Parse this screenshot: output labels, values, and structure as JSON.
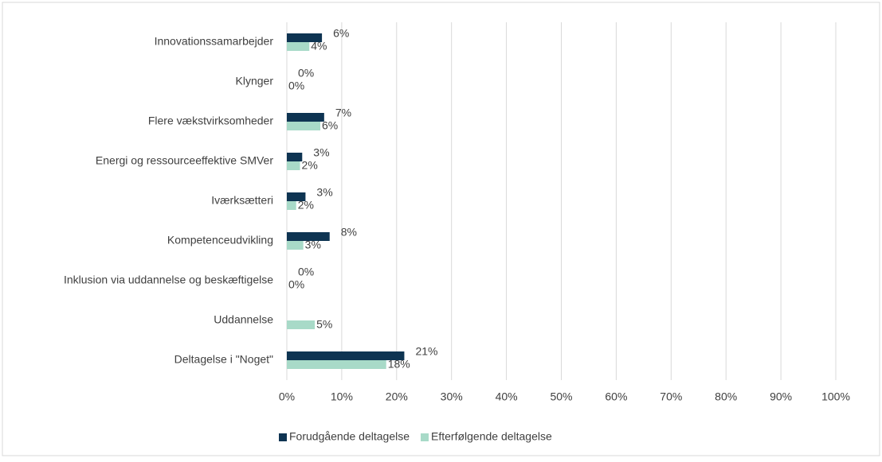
{
  "chart_data": {
    "type": "barh",
    "categories": [
      "Innovationssamarbejder",
      "Klynger",
      "Flere vækstvirksomheder",
      "Energi og ressourceeffektive SMVer",
      "Iværksætteri",
      "Kompetenceudvikling",
      "Inklusion via uddannelse og beskæftigelse",
      "Uddannelse",
      "Deltagelse i \"Noget\""
    ],
    "series": [
      {
        "name": "Forudgående deltagelse",
        "color": "#0e3452",
        "values": [
          6.4,
          0,
          6.8,
          2.8,
          3.4,
          7.8,
          0,
          null,
          21.4
        ],
        "value_labels": [
          "6%",
          "0%",
          "7%",
          "3%",
          "3%",
          "8%",
          "0%",
          null,
          "21%"
        ]
      },
      {
        "name": "Efterfølgende deltagelse",
        "color": "#a8dac8",
        "values": [
          4.1,
          0,
          6.1,
          2.4,
          1.7,
          3.0,
          0,
          5.1,
          18.1
        ],
        "value_labels": [
          "4%",
          "0%",
          "6%",
          "2%",
          "2%",
          "3%",
          "0%",
          "5%",
          "18%"
        ]
      }
    ],
    "xlim": [
      0,
      100
    ],
    "xticks": [
      {
        "value": 0,
        "label": "0%"
      },
      {
        "value": 10,
        "label": "10%"
      },
      {
        "value": 20,
        "label": "20%"
      },
      {
        "value": 30,
        "label": "30%"
      },
      {
        "value": 40,
        "label": "40%"
      },
      {
        "value": 50,
        "label": "50%"
      },
      {
        "value": 60,
        "label": "60%"
      },
      {
        "value": 70,
        "label": "70%"
      },
      {
        "value": 80,
        "label": "80%"
      },
      {
        "value": 90,
        "label": "90%"
      },
      {
        "value": 100,
        "label": "100%"
      }
    ],
    "grid": true,
    "legend": "bottom"
  }
}
